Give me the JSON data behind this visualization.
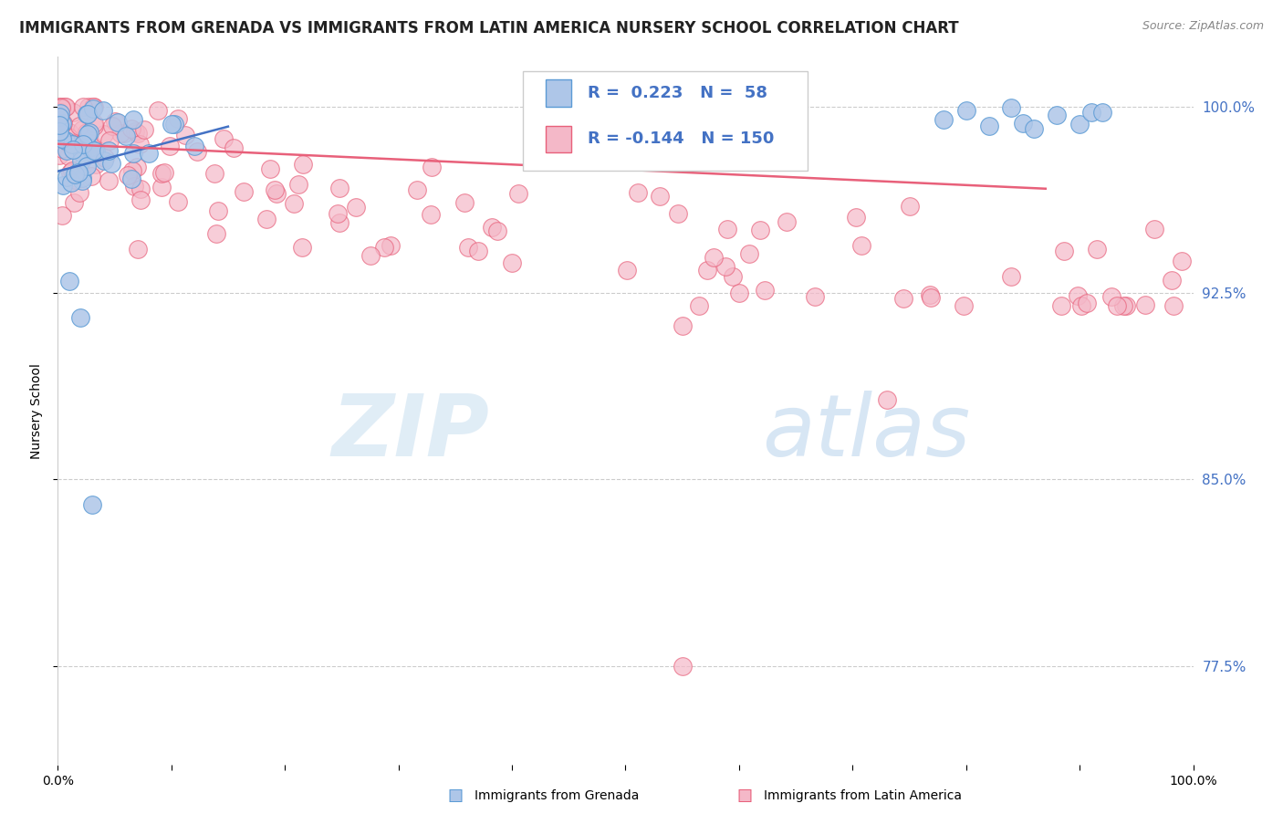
{
  "title": "IMMIGRANTS FROM GRENADA VS IMMIGRANTS FROM LATIN AMERICA NURSERY SCHOOL CORRELATION CHART",
  "source_text": "Source: ZipAtlas.com",
  "ylabel": "Nursery School",
  "watermark_zip": "ZIP",
  "watermark_atlas": "atlas",
  "legend_entries": [
    {
      "label": "Immigrants from Grenada",
      "R": 0.223,
      "N": 58,
      "color": "#aec6e8",
      "edge_color": "#5b9bd5",
      "line_color": "#4472c4"
    },
    {
      "label": "Immigrants from Latin America",
      "R": -0.144,
      "N": 150,
      "color": "#f4b8c8",
      "edge_color": "#e8607a",
      "line_color": "#e8607a"
    }
  ],
  "xlim": [
    0.0,
    1.0
  ],
  "ylim": [
    0.735,
    1.02
  ],
  "yticks": [
    0.775,
    0.85,
    0.925,
    1.0
  ],
  "ytick_labels": [
    "77.5%",
    "85.0%",
    "92.5%",
    "100.0%"
  ],
  "background_color": "#ffffff",
  "grid_color": "#cccccc",
  "title_fontsize": 12,
  "right_tick_color": "#4472c4"
}
